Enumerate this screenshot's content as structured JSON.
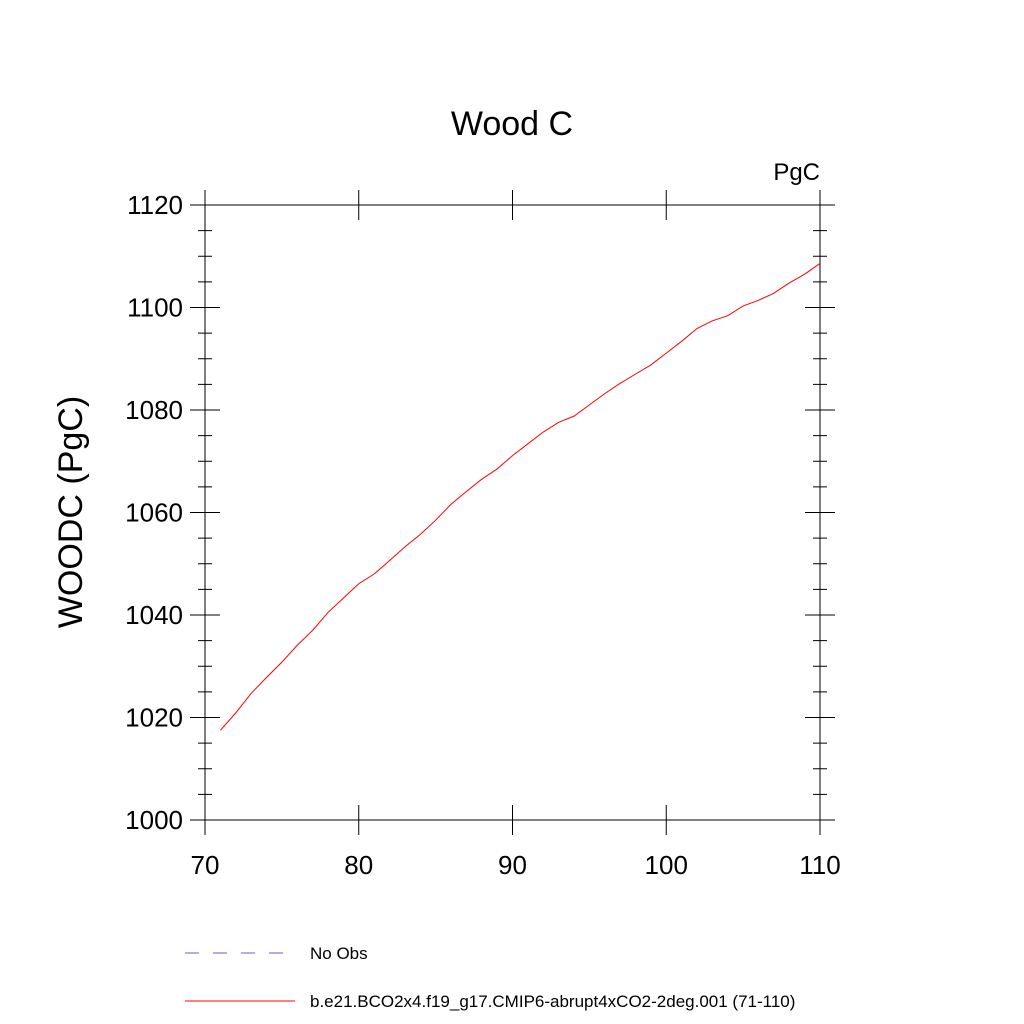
{
  "chart_data": {
    "type": "line",
    "title": "Wood C",
    "units_label": "PgC",
    "xlabel": "",
    "ylabel": "WOODC  (PgC)",
    "xlim": [
      70,
      110
    ],
    "ylim": [
      1000,
      1120
    ],
    "x_ticks": [
      70,
      80,
      90,
      100,
      110
    ],
    "y_ticks": [
      1000,
      1020,
      1040,
      1060,
      1080,
      1100,
      1120
    ],
    "x_ticks_label": [
      "70",
      "80",
      "90",
      "100",
      "110"
    ],
    "y_ticks_label": [
      "1000",
      "1020",
      "1040",
      "1060",
      "1080",
      "1100",
      "1120"
    ],
    "grid": false,
    "legend_position": "bottom",
    "series": [
      {
        "name": "No Obs",
        "color": "#6a5acd",
        "dash": "dashed",
        "x": [],
        "y": []
      },
      {
        "name": "b.e21.BCO2x4.f19_g17.CMIP6-abrupt4xCO2-2deg.001 (71-110)",
        "color": "#ff0000",
        "dash": "solid",
        "x": [
          71,
          72,
          73,
          74,
          75,
          76,
          77,
          78,
          79,
          80,
          81,
          82,
          83,
          84,
          85,
          86,
          87,
          88,
          89,
          90,
          91,
          92,
          93,
          94,
          95,
          96,
          97,
          98,
          99,
          100,
          101,
          102,
          103,
          104,
          105,
          106,
          107,
          108,
          109,
          110
        ],
        "y": [
          1017.5,
          1020.9,
          1024.7,
          1027.8,
          1030.8,
          1034.1,
          1037.0,
          1040.5,
          1043.3,
          1046.1,
          1048.0,
          1050.6,
          1053.3,
          1055.7,
          1058.5,
          1061.6,
          1064.1,
          1066.5,
          1068.5,
          1071.1,
          1073.4,
          1075.7,
          1077.6,
          1078.8,
          1081.0,
          1083.2,
          1085.2,
          1087.0,
          1088.8,
          1091.1,
          1093.4,
          1095.9,
          1097.4,
          1098.4,
          1100.3,
          1101.4,
          1102.8,
          1104.8,
          1106.5,
          1108.6
        ]
      }
    ]
  }
}
